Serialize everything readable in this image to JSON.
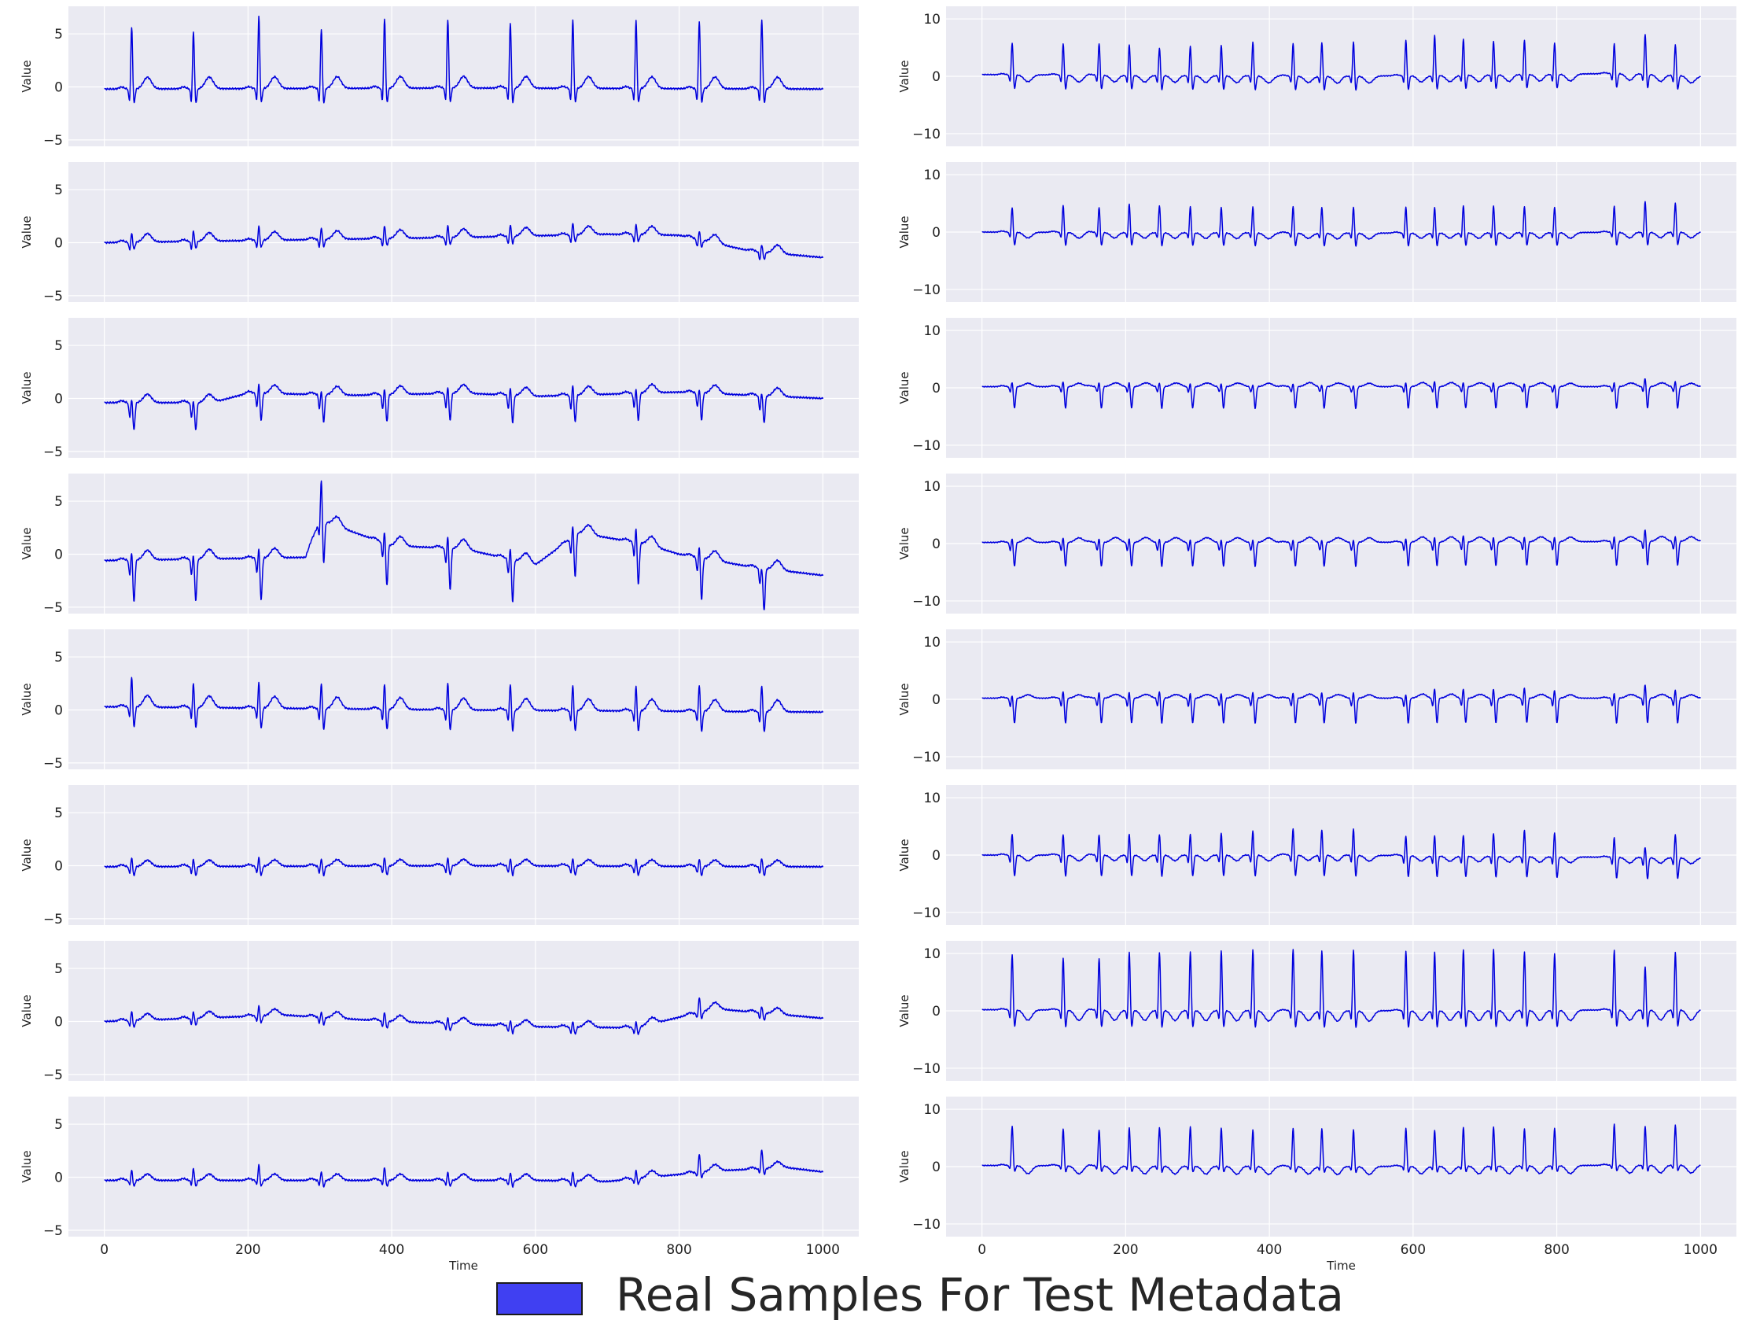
{
  "chart_data": {
    "type": "line",
    "legend": {
      "label": "Real Samples For Test Metadata",
      "color": "#4040f2",
      "placement": "bottom-center"
    },
    "series_color": "#0000dd",
    "panel_background": "#eaeaf2",
    "x_label": "Time",
    "y_label": "Value",
    "xlim": [
      -50,
      1050
    ],
    "x_ticks": [
      0,
      200,
      400,
      600,
      800,
      1000
    ],
    "columns": [
      {
        "ylim": [
          -5.6,
          7.6
        ],
        "y_ticks": [
          -5,
          0,
          5
        ],
        "y_tick_labels": [
          "−5",
          "0",
          "5"
        ],
        "panels": [
          {
            "baseline": [
              [
                0,
                -0.2
              ],
              [
                500,
                -0.1
              ],
              [
                1000,
                -0.2
              ]
            ],
            "beats": [
              38,
              124,
              215,
              302,
              390,
              478,
              565,
              652,
              740,
              828,
              915
            ],
            "r": [
              6.0,
              5.6,
              7.0,
              5.8,
              6.8,
              6.6,
              6.4,
              6.7,
              6.6,
              6.6,
              6.8
            ],
            "q": -1.5,
            "s": -1.6,
            "t": 1.1
          },
          {
            "baseline": [
              [
                0,
                0.0
              ],
              [
                200,
                0.2
              ],
              [
                500,
                0.5
              ],
              [
                700,
                0.8
              ],
              [
                800,
                0.7
              ],
              [
                900,
                -0.8
              ],
              [
                1000,
                -1.4
              ]
            ],
            "beats": [
              38,
              124,
              215,
              302,
              390,
              478,
              565,
              652,
              740,
              828,
              915
            ],
            "r": [
              0.9,
              1.1,
              1.4,
              1.2,
              1.3,
              1.2,
              1.2,
              1.2,
              1.0,
              0.9,
              0.8
            ],
            "q": -0.7,
            "s": -0.8,
            "t": 0.8
          },
          {
            "baseline": [
              [
                0,
                -0.4
              ],
              [
                150,
                -0.4
              ],
              [
                200,
                0.5
              ],
              [
                350,
                0.3
              ],
              [
                500,
                0.5
              ],
              [
                600,
                0.2
              ],
              [
                800,
                0.6
              ],
              [
                1000,
                0.0
              ]
            ],
            "beats": [
              38,
              124,
              215,
              302,
              390,
              478,
              565,
              652,
              740,
              828,
              915
            ],
            "r": [
              0.5,
              0.4,
              1.1,
              0.6,
              0.8,
              0.8,
              1.0,
              1.2,
              0.6,
              0.6,
              0.5
            ],
            "q": -2.6,
            "s": -1.4,
            "t": 0.8
          },
          {
            "baseline": [
              [
                0,
                -0.6
              ],
              [
                280,
                -0.3
              ],
              [
                300,
                3.2
              ],
              [
                400,
                0.8
              ],
              [
                500,
                0.5
              ],
              [
                600,
                -1.0
              ],
              [
                660,
                2.0
              ],
              [
                750,
                1.0
              ],
              [
                800,
                0.0
              ],
              [
                900,
                -1.2
              ],
              [
                1000,
                -2.0
              ]
            ],
            "beats": [
              38,
              124,
              215,
              302,
              390,
              478,
              565,
              652,
              740,
              828,
              915
            ],
            "r": [
              1.0,
              0.7,
              1.2,
              4.2,
              1.4,
              1.4,
              1.4,
              1.4,
              1.6,
              1.4,
              0.3
            ],
            "q": -4.0,
            "s": -1.5,
            "t": 0.9
          },
          {
            "baseline": [
              [
                0,
                0.3
              ],
              [
                500,
                0.0
              ],
              [
                1000,
                -0.2
              ]
            ],
            "beats": [
              38,
              124,
              215,
              302,
              390,
              478,
              565,
              652,
              740,
              828,
              915
            ],
            "r": [
              3.0,
              2.5,
              2.6,
              2.6,
              2.6,
              2.7,
              2.7,
              2.6,
              2.5,
              2.7,
              2.7
            ],
            "q": -2.0,
            "s": -1.2,
            "t": 1.1
          },
          {
            "baseline": [
              [
                0,
                -0.1
              ],
              [
                500,
                0.0
              ],
              [
                1000,
                -0.1
              ]
            ],
            "beats": [
              38,
              124,
              215,
              302,
              390,
              478,
              565,
              652,
              740,
              828,
              915
            ],
            "r": [
              0.9,
              0.8,
              0.9,
              0.8,
              0.9,
              0.8,
              0.8,
              0.8,
              0.7,
              0.8,
              0.9
            ],
            "q": -0.9,
            "s": -0.7,
            "t": 0.6
          },
          {
            "baseline": [
              [
                0,
                0.0
              ],
              [
                250,
                0.6
              ],
              [
                400,
                0.0
              ],
              [
                600,
                -0.5
              ],
              [
                740,
                -0.6
              ],
              [
                800,
                0.4
              ],
              [
                850,
                1.2
              ],
              [
                950,
                0.6
              ],
              [
                1000,
                0.3
              ]
            ],
            "beats": [
              38,
              124,
              215,
              302,
              390,
              478,
              565,
              652,
              740,
              828,
              915
            ],
            "r": [
              0.9,
              0.7,
              1.0,
              0.6,
              0.9,
              0.6,
              0.6,
              0.6,
              0.6,
              1.5,
              0.7
            ],
            "q": -0.7,
            "s": -0.6,
            "t": 0.6
          },
          {
            "baseline": [
              [
                0,
                -0.3
              ],
              [
                600,
                -0.3
              ],
              [
                700,
                -0.4
              ],
              [
                850,
                0.6
              ],
              [
                950,
                0.9
              ],
              [
                1000,
                0.5
              ]
            ],
            "beats": [
              38,
              124,
              215,
              302,
              390,
              478,
              565,
              652,
              740,
              828,
              915
            ],
            "r": [
              1.0,
              1.2,
              1.5,
              0.9,
              1.3,
              0.8,
              0.8,
              0.9,
              0.8,
              1.8,
              1.9
            ],
            "q": -0.6,
            "s": -0.5,
            "t": 0.6
          }
        ]
      },
      {
        "ylim": [
          -12.2,
          12.2
        ],
        "y_ticks": [
          -10,
          0,
          10
        ],
        "y_tick_labels": [
          "−10",
          "0",
          "10"
        ],
        "panels": [
          {
            "baseline": [
              [
                0,
                0.3
              ],
              [
                500,
                0.0
              ],
              [
                900,
                0.5
              ],
              [
                1000,
                0.0
              ]
            ],
            "beats": [
              42,
              113,
              163,
              205,
              247,
              290,
              333,
              377,
              433,
              473,
              517,
              590,
              630,
              670,
              712,
              755,
              797,
              880,
              923,
              965
            ],
            "r": [
              5.8,
              5.8,
              5.8,
              5.6,
              5.1,
              5.4,
              5.6,
              6.2,
              6.0,
              6.2,
              6.3,
              6.5,
              7.3,
              6.6,
              6.2,
              6.3,
              5.8,
              5.5,
              7.3,
              5.6
            ],
            "q": -2.6,
            "s": -1.6,
            "t": -1.2
          },
          {
            "baseline": [
              [
                0,
                0.0
              ],
              [
                500,
                -0.2
              ],
              [
                1000,
                0.0
              ]
            ],
            "beats": [
              42,
              113,
              163,
              205,
              247,
              290,
              333,
              377,
              433,
              473,
              517,
              590,
              630,
              670,
              712,
              755,
              797,
              880,
              923,
              965
            ],
            "r": [
              4.5,
              5.0,
              4.6,
              5.2,
              5.0,
              4.8,
              4.7,
              4.8,
              4.9,
              4.8,
              4.8,
              4.8,
              4.7,
              5.0,
              5.0,
              4.8,
              4.7,
              4.8,
              5.7,
              5.3
            ],
            "q": -2.4,
            "s": -1.2,
            "t": -1.0
          },
          {
            "baseline": [
              [
                0,
                0.2
              ],
              [
                500,
                0.2
              ],
              [
                1000,
                0.2
              ]
            ],
            "beats": [
              42,
              113,
              163,
              205,
              247,
              290,
              333,
              377,
              433,
              473,
              517,
              590,
              630,
              670,
              712,
              755,
              797,
              880,
              923,
              965
            ],
            "r": [
              1.0,
              1.2,
              1.0,
              1.0,
              1.0,
              0.8,
              0.8,
              0.6,
              0.8,
              0.6,
              0.5,
              1.0,
              1.2,
              1.0,
              1.0,
              0.8,
              0.6,
              1.0,
              1.8,
              1.2
            ],
            "q": -3.8,
            "s": -1.0,
            "t": 0.6
          },
          {
            "baseline": [
              [
                0,
                0.2
              ],
              [
                500,
                0.2
              ],
              [
                1000,
                0.4
              ]
            ],
            "beats": [
              42,
              113,
              163,
              205,
              247,
              290,
              333,
              377,
              433,
              473,
              517,
              590,
              630,
              670,
              712,
              755,
              797,
              880,
              923,
              965
            ],
            "r": [
              1.0,
              1.2,
              1.0,
              1.0,
              1.0,
              0.8,
              0.8,
              0.8,
              0.8,
              0.8,
              0.8,
              1.0,
              1.2,
              1.5,
              1.2,
              1.2,
              1.2,
              1.2,
              2.5,
              1.2
            ],
            "q": -4.2,
            "s": -1.5,
            "t": 0.8
          },
          {
            "baseline": [
              [
                0,
                0.2
              ],
              [
                500,
                0.2
              ],
              [
                1000,
                0.2
              ]
            ],
            "beats": [
              42,
              113,
              163,
              205,
              247,
              290,
              333,
              377,
              433,
              473,
              517,
              590,
              630,
              670,
              712,
              755,
              797,
              880,
              923,
              965
            ],
            "r": [
              0.8,
              1.6,
              1.4,
              1.4,
              1.6,
              1.2,
              1.2,
              1.4,
              1.3,
              1.4,
              1.4,
              1.0,
              2.0,
              2.0,
              2.0,
              2.2,
              1.8,
              1.2,
              2.8,
              1.8
            ],
            "q": -4.4,
            "s": -1.5,
            "t": 0.6
          },
          {
            "baseline": [
              [
                0,
                0.0
              ],
              [
                500,
                0.0
              ],
              [
                1000,
                -0.5
              ]
            ],
            "beats": [
              42,
              113,
              163,
              205,
              247,
              290,
              333,
              377,
              433,
              473,
              517,
              590,
              630,
              670,
              712,
              755,
              797,
              880,
              923,
              965
            ],
            "r": [
              4.0,
              4.0,
              3.9,
              4.0,
              4.0,
              4.0,
              4.2,
              4.6,
              5.0,
              4.8,
              5.0,
              3.8,
              3.9,
              4.0,
              4.4,
              5.0,
              4.6,
              3.8,
              2.2,
              4.4
            ],
            "q": -3.8,
            "s": -1.6,
            "t": -1.0
          },
          {
            "baseline": [
              [
                0,
                0.2
              ],
              [
                500,
                0.0
              ],
              [
                1000,
                0.2
              ]
            ],
            "beats": [
              42,
              113,
              163,
              205,
              247,
              290,
              333,
              377,
              433,
              473,
              517,
              590,
              630,
              670,
              712,
              755,
              797,
              880,
              923,
              965
            ],
            "r": [
              10.0,
              9.5,
              9.4,
              10.5,
              10.5,
              10.6,
              10.8,
              11.0,
              11.1,
              10.9,
              11.0,
              10.8,
              10.6,
              11.0,
              11.1,
              10.6,
              10.3,
              10.8,
              8.0,
              10.4
            ],
            "q": -3.2,
            "s": -2.2,
            "t": -1.8
          },
          {
            "baseline": [
              [
                0,
                0.2
              ],
              [
                500,
                0.0
              ],
              [
                1000,
                0.3
              ]
            ],
            "beats": [
              42,
              113,
              163,
              205,
              247,
              290,
              333,
              377,
              433,
              473,
              517,
              590,
              630,
              670,
              712,
              755,
              797,
              880,
              923,
              965
            ],
            "r": [
              7.0,
              6.6,
              6.4,
              6.8,
              6.9,
              7.0,
              6.8,
              6.5,
              6.8,
              6.8,
              6.6,
              6.8,
              6.4,
              6.9,
              7.0,
              6.6,
              6.7,
              7.3,
              7.0,
              7.1
            ],
            "q": -1.2,
            "s": -1.0,
            "t": -1.4
          }
        ]
      }
    ]
  }
}
